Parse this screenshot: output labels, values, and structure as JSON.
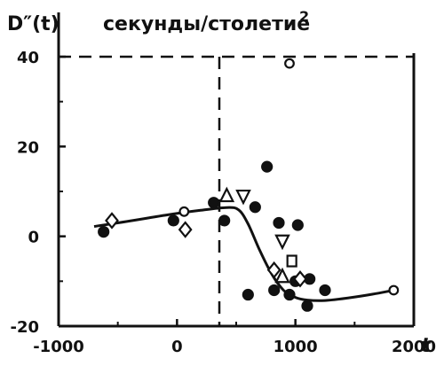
{
  "chart_data": {
    "type": "scatter",
    "ylabel": "D″(t)",
    "units": "секунды/столетие",
    "units_sup": "2",
    "xlabel": "t",
    "xlim": [
      -1000,
      2000
    ],
    "ylim": [
      -20,
      40
    ],
    "xticks": [
      "-1000",
      "0",
      "1000",
      "2000"
    ],
    "yticks": [
      "-20",
      "0",
      "20",
      "40"
    ],
    "xtick_values": [
      -1000,
      0,
      1000,
      2000
    ],
    "ytick_values": [
      -20,
      0,
      20,
      40
    ],
    "reference_lines": {
      "vertical_x": 500,
      "horizontal_y": 40
    },
    "series": [
      {
        "marker": "filled-circle",
        "points": [
          [
            -620,
            1
          ],
          [
            -30,
            3.5
          ],
          [
            310,
            7.5
          ],
          [
            400,
            3.5
          ],
          [
            660,
            6.5
          ],
          [
            760,
            15.5
          ],
          [
            600,
            -13
          ],
          [
            820,
            -12
          ],
          [
            860,
            3
          ],
          [
            1020,
            2.5
          ],
          [
            1000,
            -10
          ],
          [
            1120,
            -9.5
          ],
          [
            1100,
            -15.5
          ],
          [
            1250,
            -12
          ],
          [
            950,
            -13
          ]
        ]
      },
      {
        "marker": "open-circle",
        "points": [
          [
            950,
            38.5
          ],
          [
            60,
            5.5
          ],
          [
            1830,
            -12
          ]
        ]
      },
      {
        "marker": "open-diamond",
        "points": [
          [
            -550,
            3.5
          ],
          [
            70,
            1.5
          ],
          [
            820,
            -7.5
          ],
          [
            1040,
            -9.5
          ]
        ]
      },
      {
        "marker": "open-triangle-up",
        "points": [
          [
            420,
            9
          ],
          [
            890,
            -9
          ]
        ]
      },
      {
        "marker": "open-triangle-down",
        "points": [
          [
            560,
            9
          ],
          [
            890,
            -1
          ]
        ]
      },
      {
        "marker": "open-square",
        "points": [
          [
            970,
            -5.5
          ]
        ]
      }
    ],
    "trend_line": [
      [
        -700,
        2.2
      ],
      [
        -400,
        3.4
      ],
      [
        -100,
        4.7
      ],
      [
        200,
        5.8
      ],
      [
        420,
        6.4
      ],
      [
        520,
        5.9
      ],
      [
        600,
        2.8
      ],
      [
        700,
        -3.2
      ],
      [
        800,
        -8.4
      ],
      [
        900,
        -12.0
      ],
      [
        1000,
        -13.6
      ],
      [
        1100,
        -14.2
      ],
      [
        1250,
        -14.3
      ],
      [
        1450,
        -13.7
      ],
      [
        1650,
        -12.9
      ],
      [
        1830,
        -12.0
      ]
    ]
  }
}
